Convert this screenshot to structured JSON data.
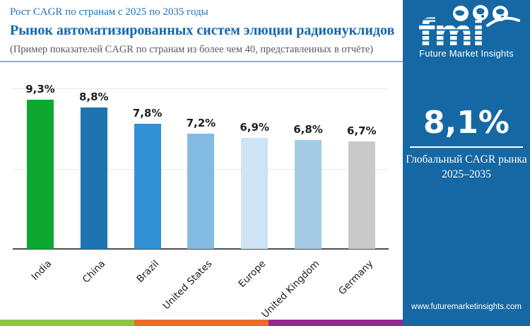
{
  "header": {
    "line1": "Рост CAGR по странам с 2025 по 2035 годы",
    "title": "Рынок автоматизированных систем элюции радионуклидов",
    "subtitle": "(Пример показателей CAGR по странам из более чем 40, представленных в отчёте)"
  },
  "chart_data": {
    "type": "bar",
    "title": "Рост CAGR по странам с 2025 по 2035 годы",
    "categories": [
      "India",
      "China",
      "Brazil",
      "United States",
      "Europe",
      "United Kingdom",
      "Germany"
    ],
    "values": [
      9.3,
      8.8,
      7.8,
      7.2,
      6.9,
      6.8,
      6.7
    ],
    "value_labels": [
      "9,3%",
      "8,8%",
      "7,8%",
      "7,2%",
      "6,9%",
      "6,8%",
      "6,7%"
    ],
    "bar_colors": [
      "#0DA82F",
      "#1D74B0",
      "#3291D4",
      "#83BAE3",
      "#CEE3F3",
      "#A4CBE4",
      "#C9C9C9"
    ],
    "xlabel": "",
    "ylabel": "",
    "ylim": [
      0,
      10
    ],
    "gridlines": [
      5,
      10
    ],
    "grid": "horizontal-light",
    "legend": "none",
    "x_tick_rotation": 45
  },
  "sidebar": {
    "logo_text": "fmi",
    "logo_caption": "Future Market Insights",
    "cagr_value": "8,1%",
    "cagr_label_line1": "Глобальный CAGR рынка",
    "cagr_label_line2": "2025–2035",
    "website": "www.futuremarketinsights.com",
    "bg_color": "#1568A3"
  },
  "footer": {
    "strip_colors": [
      "#8CC63E",
      "#ED6B24",
      "#93278F"
    ]
  }
}
